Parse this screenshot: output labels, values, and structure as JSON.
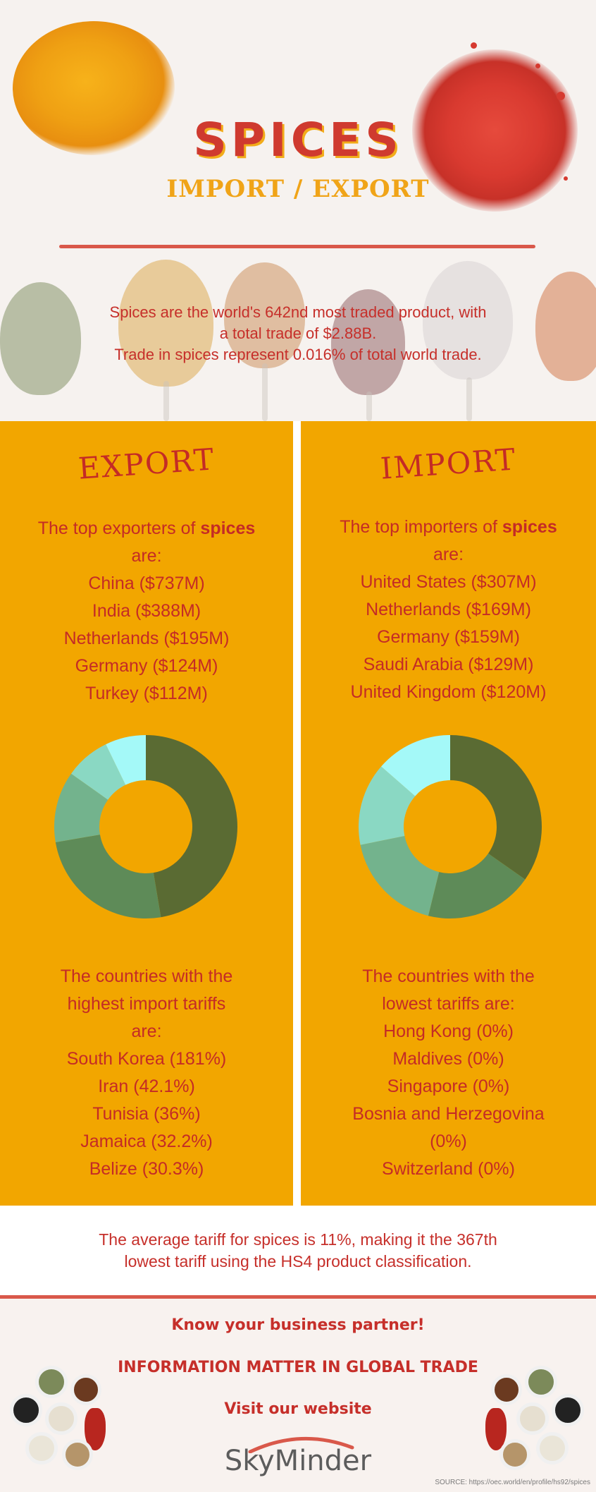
{
  "header": {
    "title": "SPICES",
    "subtitle": "IMPORT / EXPORT",
    "intro_lines": [
      "Spices are the world's 642nd most traded product, with",
      "a total trade of $2.88B.",
      "Trade in spices represent 0.016% of total world trade."
    ]
  },
  "export": {
    "heading": "EXPORT",
    "intro_prefix": "The top exporters of ",
    "intro_bold": "spices",
    "intro_suffix": "are:",
    "items": [
      "China ($737M)",
      "India ($388M)",
      "Netherlands ($195M)",
      "Germany ($124M)",
      "Turkey ($112M)"
    ],
    "chart_values": [
      737,
      388,
      195,
      124,
      112
    ],
    "tariff_lines": [
      "The countries with the",
      "highest import tariffs",
      "are:"
    ],
    "tariff_items": [
      "South Korea (181%)",
      "Iran (42.1%)",
      "Tunisia (36%)",
      "Jamaica (32.2%)",
      "Belize (30.3%)"
    ]
  },
  "import": {
    "heading": "IMPORT",
    "intro_prefix": "The top importers of ",
    "intro_bold": "spices",
    "intro_suffix": "are:",
    "items": [
      "United States ($307M)",
      "Netherlands ($169M)",
      "Germany ($159M)",
      "Saudi Arabia ($129M)",
      "United Kingdom ($120M)"
    ],
    "chart_values": [
      307,
      169,
      159,
      129,
      120
    ],
    "tariff_lines": [
      "The countries with the",
      "lowest tariffs are:"
    ],
    "tariff_items": [
      "Hong Kong (0%)",
      "Maldives (0%)",
      "Singapore (0%)",
      "Bosnia and Herzegovina",
      "(0%)",
      "Switzerland (0%)"
    ]
  },
  "chart_colors": [
    "#5a6b33",
    "#5e8b58",
    "#73b38d",
    "#8ad8c3",
    "#a4f9f8"
  ],
  "tariff_note_lines": [
    "The average tariff for spices is 11%, making it the 367th",
    "lowest tariff using the HS4 product classification."
  ],
  "footer": {
    "cta1": "Know your business partner!",
    "cta2": "INFORMATION MATTER IN GLOBAL TRADE",
    "cta3": "Visit our website",
    "logo": "SkyMinder",
    "source": "SOURCE: https://oec.world/en/profile/hs92/spices"
  }
}
